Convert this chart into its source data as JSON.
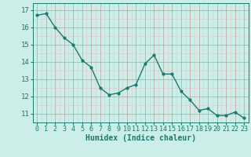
{
  "x": [
    0,
    1,
    2,
    3,
    4,
    5,
    6,
    7,
    8,
    9,
    10,
    11,
    12,
    13,
    14,
    15,
    16,
    17,
    18,
    19,
    20,
    21,
    22,
    23
  ],
  "y": [
    16.7,
    16.8,
    16.0,
    15.4,
    15.0,
    14.1,
    13.7,
    12.5,
    12.1,
    12.2,
    12.5,
    12.7,
    13.9,
    14.4,
    13.3,
    13.3,
    12.3,
    11.8,
    11.2,
    11.3,
    10.9,
    10.9,
    11.1,
    10.75
  ],
  "xlabel": "Humidex (Indice chaleur)",
  "line_color": "#1a7a6e",
  "marker_color": "#1a7a6e",
  "bg_color": "#cceee8",
  "grid_major_color": "#b8a0a0",
  "grid_minor_color": "#e0c8c8",
  "ylim_min": 10.5,
  "ylim_max": 17.4,
  "yticks": [
    11,
    12,
    13,
    14,
    15,
    16,
    17
  ],
  "xticks": [
    0,
    1,
    2,
    3,
    4,
    5,
    6,
    7,
    8,
    9,
    10,
    11,
    12,
    13,
    14,
    15,
    16,
    17,
    18,
    19,
    20,
    21,
    22,
    23
  ],
  "tick_fontsize": 6.0,
  "xlabel_fontsize": 7.0,
  "xlim_min": -0.3,
  "xlim_max": 23.3
}
